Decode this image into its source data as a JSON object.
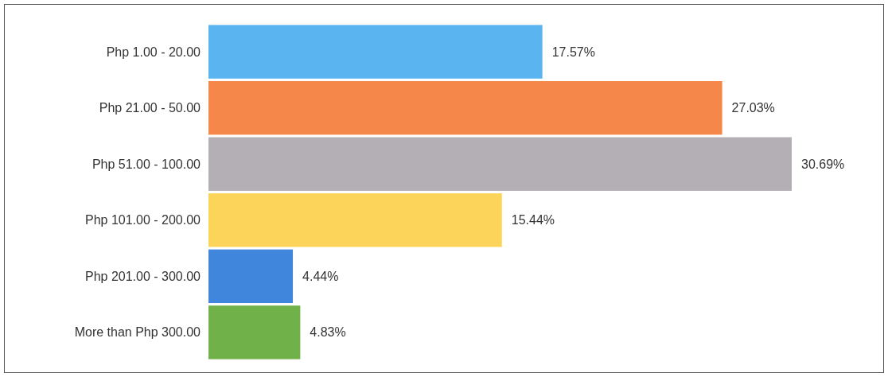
{
  "chart_data": {
    "type": "bar",
    "orientation": "horizontal",
    "categories": [
      "Php 1.00 - 20.00",
      "Php 21.00 - 50.00",
      "Php 51.00 - 100.00",
      "Php 101.00 - 200.00",
      "Php 201.00 - 300.00",
      "More than Php 300.00"
    ],
    "values": [
      17.57,
      27.03,
      30.69,
      15.44,
      4.44,
      4.83
    ],
    "colors": [
      "#5ab4f0",
      "#f5874a",
      "#b3afb5",
      "#fcd45a",
      "#3f86dc",
      "#70b14a"
    ],
    "value_labels": [
      "17.57%",
      "27.03%",
      "30.69%",
      "15.44%",
      "4.44%",
      "4.83%"
    ]
  }
}
